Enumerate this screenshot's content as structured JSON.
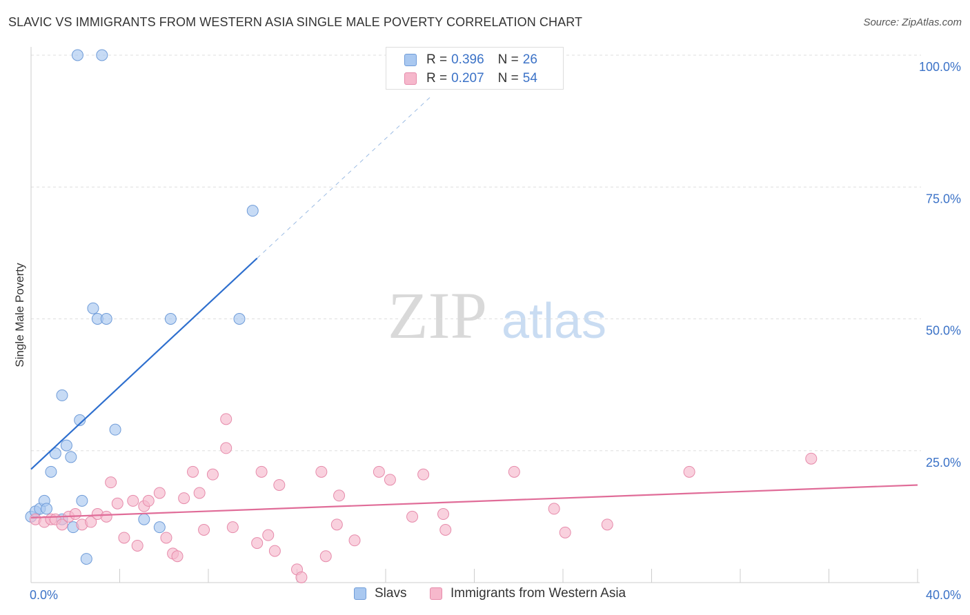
{
  "header": {
    "title": "SLAVIC VS IMMIGRANTS FROM WESTERN ASIA SINGLE MALE POVERTY CORRELATION CHART",
    "source": "Source: ZipAtlas.com"
  },
  "watermark": {
    "zip": "ZIP",
    "atlas": "atlas"
  },
  "stats_legend": [
    {
      "series": "Slavs",
      "r_label": "R =",
      "r_value": "0.396",
      "n_label": "N =",
      "n_value": "26"
    },
    {
      "series": "Immigrants from Western Asia",
      "r_label": "R =",
      "r_value": "0.207",
      "n_label": "N =",
      "n_value": "54"
    }
  ],
  "colors": {
    "slavs_fill": "#a9c8f0",
    "slavs_stroke": "#6e9bd8",
    "slavs_line": "#2e6fce",
    "immig_fill": "#f6b8cc",
    "immig_stroke": "#e68aaa",
    "immig_line": "#e06c98",
    "axis_label": "#3b72c7",
    "grid": "#dddddd"
  },
  "chart_data": {
    "type": "scatter",
    "ylabel": "Single Male Poverty",
    "xlim": [
      0,
      40
    ],
    "ylim": [
      0,
      100
    ],
    "x_tick_labels": [
      "0.0%",
      "40.0%"
    ],
    "y_ticks": [
      25,
      50,
      75,
      100
    ],
    "y_tick_labels": [
      "25.0%",
      "50.0%",
      "75.0%",
      "100.0%"
    ],
    "grid": true,
    "legend_position": "bottom",
    "series": [
      {
        "name": "Slavs",
        "points": [
          [
            0.0,
            12.5
          ],
          [
            0.2,
            13.5
          ],
          [
            0.4,
            14.0
          ],
          [
            0.6,
            15.5
          ],
          [
            0.7,
            14.0
          ],
          [
            0.9,
            21.0
          ],
          [
            1.1,
            24.5
          ],
          [
            1.4,
            12.0
          ],
          [
            1.4,
            35.5
          ],
          [
            1.6,
            26.0
          ],
          [
            1.8,
            23.8
          ],
          [
            1.9,
            10.5
          ],
          [
            2.1,
            100.0
          ],
          [
            2.2,
            30.8
          ],
          [
            2.3,
            15.5
          ],
          [
            2.5,
            4.5
          ],
          [
            2.8,
            52.0
          ],
          [
            3.0,
            50.0
          ],
          [
            3.2,
            100.0
          ],
          [
            3.4,
            50.0
          ],
          [
            3.8,
            29.0
          ],
          [
            5.1,
            12.0
          ],
          [
            5.8,
            10.5
          ],
          [
            6.3,
            50.0
          ],
          [
            9.4,
            50.0
          ],
          [
            10.0,
            70.5
          ]
        ],
        "trend": {
          "x0": 0.0,
          "y0": 21.5,
          "x1": 10.2,
          "y1": 61.5,
          "x_dashed_end": 18.0,
          "y_dashed_end": 92.0
        }
      },
      {
        "name": "Immigrants from Western Asia",
        "points": [
          [
            0.2,
            12.0
          ],
          [
            0.6,
            11.5
          ],
          [
            0.9,
            12.0
          ],
          [
            1.1,
            12.0
          ],
          [
            1.4,
            11.0
          ],
          [
            1.7,
            12.5
          ],
          [
            2.0,
            13.0
          ],
          [
            2.3,
            11.0
          ],
          [
            2.7,
            11.5
          ],
          [
            3.0,
            13.0
          ],
          [
            3.4,
            12.5
          ],
          [
            3.6,
            19.0
          ],
          [
            3.9,
            15.0
          ],
          [
            4.2,
            8.5
          ],
          [
            4.6,
            15.5
          ],
          [
            4.8,
            7.0
          ],
          [
            5.1,
            14.5
          ],
          [
            5.3,
            15.5
          ],
          [
            5.8,
            17.0
          ],
          [
            6.1,
            8.5
          ],
          [
            6.4,
            5.5
          ],
          [
            6.6,
            5.0
          ],
          [
            6.9,
            16.0
          ],
          [
            7.3,
            21.0
          ],
          [
            7.6,
            17.0
          ],
          [
            7.8,
            10.0
          ],
          [
            8.2,
            20.5
          ],
          [
            8.8,
            25.5
          ],
          [
            8.8,
            31.0
          ],
          [
            9.1,
            10.5
          ],
          [
            10.2,
            7.5
          ],
          [
            10.4,
            21.0
          ],
          [
            10.7,
            9.0
          ],
          [
            11.0,
            6.0
          ],
          [
            11.2,
            18.5
          ],
          [
            12.0,
            2.5
          ],
          [
            12.2,
            1.0
          ],
          [
            13.1,
            21.0
          ],
          [
            13.3,
            5.0
          ],
          [
            13.8,
            11.0
          ],
          [
            13.9,
            16.5
          ],
          [
            14.6,
            8.0
          ],
          [
            15.7,
            21.0
          ],
          [
            16.2,
            19.5
          ],
          [
            17.2,
            12.5
          ],
          [
            17.7,
            20.5
          ],
          [
            18.6,
            13.0
          ],
          [
            18.7,
            10.0
          ],
          [
            21.8,
            21.0
          ],
          [
            23.6,
            14.0
          ],
          [
            24.1,
            9.5
          ],
          [
            26.0,
            11.0
          ],
          [
            29.7,
            21.0
          ],
          [
            35.2,
            23.5
          ]
        ],
        "trend": {
          "x0": 0.0,
          "y0": 12.3,
          "x1": 40.0,
          "y1": 18.5
        }
      }
    ]
  }
}
